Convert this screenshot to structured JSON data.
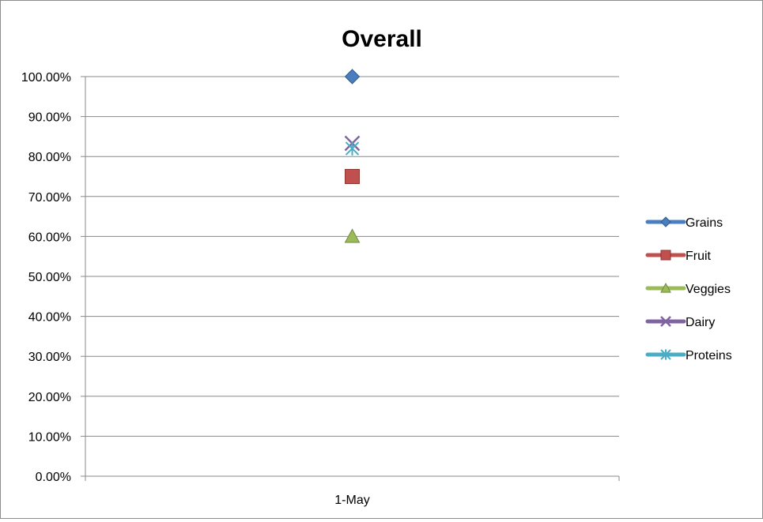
{
  "chart_data": {
    "type": "line",
    "title": "Overall",
    "categories": [
      "1-May"
    ],
    "y_ticks": [
      "0.00%",
      "10.00%",
      "20.00%",
      "30.00%",
      "40.00%",
      "50.00%",
      "60.00%",
      "70.00%",
      "80.00%",
      "90.00%",
      "100.00%"
    ],
    "ylim": [
      0,
      100
    ],
    "y_unit": "percent",
    "grid": true,
    "legend_position": "right",
    "series": [
      {
        "name": "Grains",
        "values": [
          100
        ],
        "color": "#4a7ebf",
        "marker": "diamond"
      },
      {
        "name": "Fruit",
        "values": [
          75
        ],
        "color": "#c0504d",
        "marker": "square"
      },
      {
        "name": "Veggies",
        "values": [
          60
        ],
        "color": "#9bbb59",
        "marker": "triangle"
      },
      {
        "name": "Dairy",
        "values": [
          83.3
        ],
        "color": "#8064a2",
        "marker": "x"
      },
      {
        "name": "Proteins",
        "values": [
          82
        ],
        "color": "#4bacc6",
        "marker": "asterisk"
      }
    ]
  }
}
